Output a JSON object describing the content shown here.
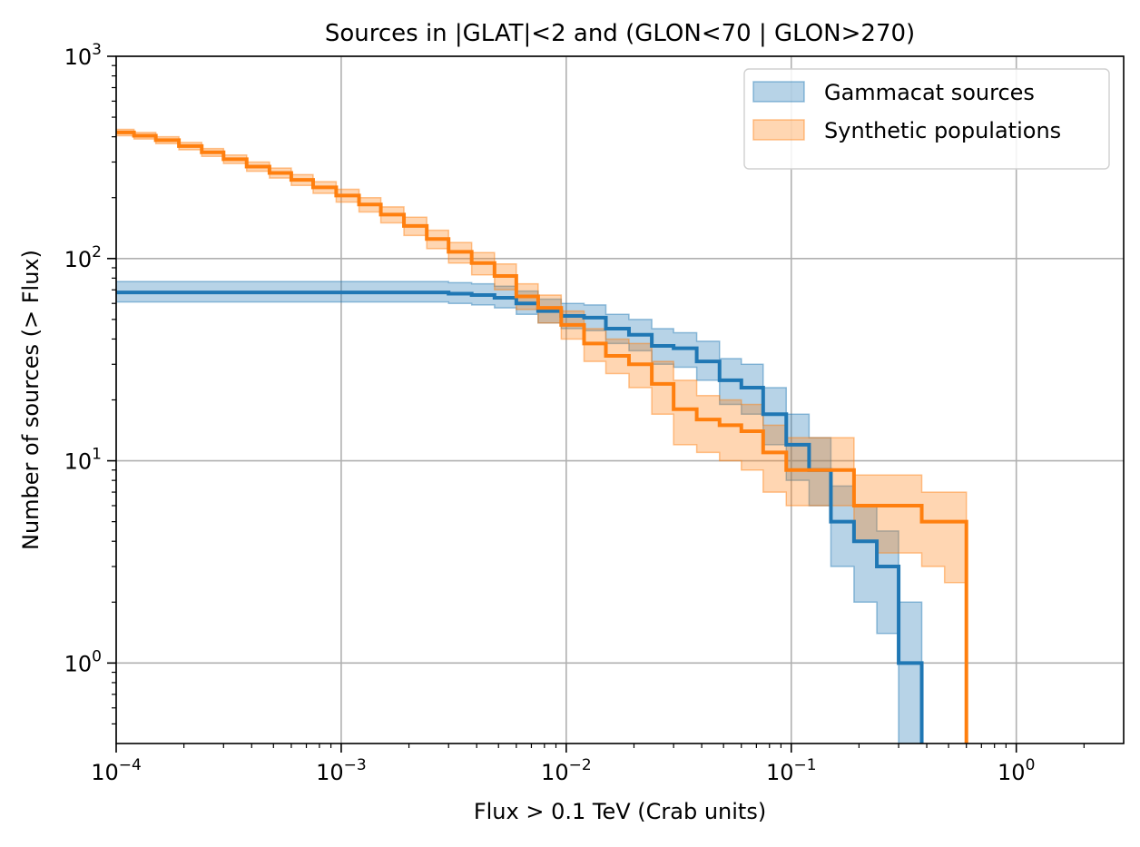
{
  "chart_data": {
    "type": "line",
    "title": "Sources in |GLAT|<2 and (GLON<70 | GLON>270)",
    "xlabel": "Flux > 0.1 TeV (Crab units)",
    "ylabel": "Number of sources (> Flux)",
    "xscale": "log",
    "yscale": "log",
    "xlim": [
      0.0001,
      3.0
    ],
    "ylim": [
      0.4,
      1000
    ],
    "grid": true,
    "legend_position": "top-right",
    "x_ticks": [
      {
        "value": 0.0001,
        "base": "10",
        "exp": "−4"
      },
      {
        "value": 0.001,
        "base": "10",
        "exp": "−3"
      },
      {
        "value": 0.01,
        "base": "10",
        "exp": "−2"
      },
      {
        "value": 0.1,
        "base": "10",
        "exp": "−1"
      },
      {
        "value": 1,
        "base": "10",
        "exp": "0"
      }
    ],
    "y_ticks": [
      {
        "value": 1,
        "base": "10",
        "exp": "0"
      },
      {
        "value": 10,
        "base": "10",
        "exp": "1"
      },
      {
        "value": 100,
        "base": "10",
        "exp": "2"
      },
      {
        "value": 1000,
        "base": "10",
        "exp": "3"
      }
    ],
    "series": [
      {
        "name": "Gammacat sources",
        "color": "#1f77b4",
        "band_color": "#1f77b4",
        "style": "step",
        "x": [
          0.0001,
          0.0012,
          0.003,
          0.0038,
          0.0048,
          0.006,
          0.0075,
          0.0095,
          0.012,
          0.015,
          0.019,
          0.024,
          0.03,
          0.038,
          0.048,
          0.06,
          0.075,
          0.095,
          0.12,
          0.15,
          0.19,
          0.24,
          0.3,
          0.38
        ],
        "y": [
          68,
          68,
          67,
          66,
          64,
          60,
          55,
          52,
          51,
          45,
          42,
          37,
          36,
          31,
          25,
          23,
          17,
          12,
          9,
          5,
          4,
          3,
          1,
          1
        ],
        "y_low": [
          61,
          61,
          60,
          59,
          57,
          53,
          48,
          45,
          44,
          38,
          35,
          30,
          29,
          25,
          19,
          17,
          12,
          8,
          6,
          3,
          2,
          1.4,
          0.4,
          0.4
        ],
        "y_high": [
          77,
          77,
          76,
          75,
          73,
          69,
          63,
          60,
          59,
          53,
          50,
          45,
          43,
          39,
          32,
          30,
          23,
          17,
          13,
          7.5,
          6,
          4.5,
          2,
          2
        ]
      },
      {
        "name": "Synthetic populations",
        "color": "#ff7f0e",
        "band_color": "#ff7f0e",
        "style": "step",
        "x": [
          0.0001,
          0.00012,
          0.00015,
          0.00019,
          0.00024,
          0.0003,
          0.00038,
          0.00048,
          0.0006,
          0.00075,
          0.00095,
          0.0012,
          0.0015,
          0.0019,
          0.0024,
          0.003,
          0.0038,
          0.0048,
          0.006,
          0.0075,
          0.0095,
          0.012,
          0.015,
          0.019,
          0.024,
          0.03,
          0.038,
          0.048,
          0.06,
          0.075,
          0.095,
          0.12,
          0.15,
          0.19,
          0.24,
          0.3,
          0.38,
          0.48,
          0.6
        ],
        "y": [
          420,
          405,
          385,
          360,
          335,
          310,
          285,
          265,
          245,
          225,
          205,
          185,
          165,
          145,
          125,
          108,
          95,
          82,
          65,
          57,
          47,
          38,
          33,
          30,
          24,
          18,
          16,
          15,
          14,
          11,
          9,
          9,
          9,
          6,
          6,
          6,
          5,
          5,
          4
        ],
        "y_low": [
          405,
          390,
          370,
          345,
          320,
          295,
          270,
          250,
          230,
          210,
          190,
          170,
          150,
          130,
          112,
          95,
          83,
          70,
          56,
          48,
          40,
          31,
          27,
          23,
          17,
          12,
          11,
          10,
          9,
          7,
          6,
          6,
          6,
          4,
          3.5,
          3.5,
          3,
          2.5,
          2
        ],
        "y_high": [
          435,
          420,
          400,
          375,
          350,
          325,
          300,
          280,
          260,
          240,
          220,
          200,
          180,
          160,
          138,
          120,
          107,
          94,
          75,
          66,
          55,
          45,
          40,
          38,
          31,
          25,
          21,
          20,
          19,
          15,
          13,
          13,
          13,
          8.5,
          8.5,
          8.5,
          7,
          7,
          6
        ]
      }
    ]
  }
}
